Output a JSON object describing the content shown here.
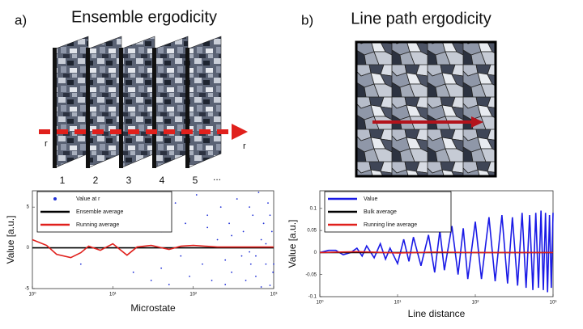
{
  "panels": [
    {
      "label": "a)",
      "title": "Ensemble ergodicity",
      "arrow_labels": [
        "r",
        "r"
      ],
      "slab_labels": [
        "1",
        "2",
        "3",
        "4",
        "5",
        "..."
      ]
    },
    {
      "label": "b)",
      "title": "Line path ergodicity"
    }
  ],
  "chart_data": [
    {
      "type": "scatter",
      "xlabel": "Microstate",
      "ylabel": "Value [a.u.]",
      "xscale": "log",
      "legend": "upper left",
      "xlim": [
        1,
        1000
      ],
      "ylim": [
        -5,
        7
      ],
      "xticks": [
        {
          "value": 1,
          "label": "10⁰"
        },
        {
          "value": 10,
          "label": "10¹"
        },
        {
          "value": 100,
          "label": "10²"
        },
        {
          "value": 1000,
          "label": "10³"
        }
      ],
      "yticks": [
        -5,
        0,
        5
      ],
      "series": [
        {
          "name": "Value at r",
          "type": "scatter",
          "color": "#1f2fd6",
          "x": [
            2,
            4,
            8,
            12,
            18,
            25,
            30,
            40,
            50,
            60,
            70,
            80,
            90,
            110,
            130,
            150,
            170,
            200,
            220,
            250,
            280,
            300,
            350,
            400,
            420,
            450,
            500,
            520,
            550,
            600,
            650,
            700,
            750,
            800,
            850,
            900,
            950,
            980,
            300,
            600,
            800,
            900,
            1000,
            150,
            250,
            700,
            500,
            40
          ],
          "values": [
            3,
            -2,
            4,
            5,
            -3,
            6,
            -4,
            2,
            -4.5,
            5.5,
            -1,
            3,
            -3.5,
            6.5,
            -2,
            4,
            -4,
            1,
            5,
            -4.5,
            3,
            -3,
            6,
            -1,
            2,
            -4,
            5,
            -2,
            4,
            -3.5,
            6.8,
            -4.8,
            3,
            -2,
            5.5,
            -4.6,
            2,
            -3,
            1.5,
            -1,
            0.5,
            4,
            -2,
            2.5,
            -1.5,
            1,
            -0.5,
            -2.5
          ]
        },
        {
          "name": "Ensemble average",
          "type": "line",
          "color": "#000000",
          "x": [
            1,
            1000
          ],
          "values": [
            0,
            0
          ]
        },
        {
          "name": "Running average",
          "type": "line",
          "color": "#e0201c",
          "x": [
            1,
            1.5,
            2,
            3,
            4,
            5,
            7,
            10,
            15,
            20,
            30,
            50,
            70,
            100,
            200,
            500,
            1000
          ],
          "values": [
            1,
            0.3,
            -0.8,
            -1.2,
            -0.6,
            0.2,
            -0.3,
            0.5,
            -0.9,
            0.1,
            0.3,
            -0.2,
            0.2,
            0.3,
            0.1,
            0.1,
            0.1
          ]
        }
      ]
    },
    {
      "type": "line",
      "xlabel": "Line distance",
      "ylabel": "Value [a.u.]",
      "xscale": "log",
      "legend": "upper left",
      "xlim": [
        1,
        1000
      ],
      "ylim": [
        -0.1,
        0.14
      ],
      "xticks": [
        {
          "value": 1,
          "label": "10⁰"
        },
        {
          "value": 10,
          "label": "10¹"
        },
        {
          "value": 100,
          "label": "10²"
        },
        {
          "value": 1000,
          "label": "10³"
        }
      ],
      "yticks": [
        -0.1,
        -0.05,
        0,
        0.05,
        0.1
      ],
      "series": [
        {
          "name": "Value",
          "type": "line",
          "color": "#1a1ae6",
          "x": [
            1,
            1.3,
            1.6,
            2,
            2.5,
            3,
            3.5,
            4,
            5,
            6,
            7,
            8,
            10,
            12,
            14,
            16,
            20,
            25,
            30,
            35,
            40,
            50,
            60,
            70,
            80,
            100,
            120,
            150,
            180,
            220,
            260,
            300,
            350,
            400,
            450,
            500,
            550,
            600,
            650,
            700,
            750,
            800,
            850,
            900,
            950,
            1000
          ],
          "values": [
            0,
            0.005,
            0.005,
            -0.005,
            0,
            0.01,
            -0.008,
            0.015,
            -0.012,
            0.02,
            -0.015,
            0.01,
            -0.025,
            0.03,
            -0.02,
            0.035,
            -0.03,
            0.04,
            -0.045,
            0.05,
            -0.04,
            0.06,
            -0.05,
            0.055,
            -0.06,
            0.07,
            -0.06,
            0.08,
            -0.065,
            0.085,
            -0.07,
            0.08,
            -0.075,
            0.09,
            -0.08,
            0.085,
            -0.085,
            0.09,
            -0.08,
            0.095,
            -0.085,
            0.09,
            -0.09,
            0.085,
            -0.08,
            0.09
          ]
        },
        {
          "name": "Bulk average",
          "type": "line",
          "color": "#000000",
          "x": [
            1,
            1000
          ],
          "values": [
            0,
            0
          ]
        },
        {
          "name": "Running line average",
          "type": "line",
          "color": "#e0201c",
          "x": [
            1,
            3,
            10,
            30,
            100,
            1000
          ],
          "values": [
            0,
            0.002,
            -0.001,
            0.001,
            0,
            0
          ]
        }
      ]
    }
  ]
}
